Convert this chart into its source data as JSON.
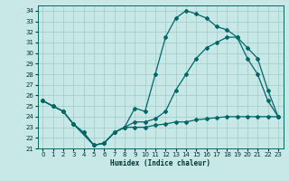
{
  "xlabel": "Humidex (Indice chaleur)",
  "ylabel": "",
  "bg_color": "#c8e8e8",
  "grid_color": "#a0c8c8",
  "line_color": "#006666",
  "xlim": [
    -0.5,
    23.5
  ],
  "ylim": [
    21,
    34.5
  ],
  "xticks": [
    0,
    1,
    2,
    3,
    4,
    5,
    6,
    7,
    8,
    9,
    10,
    11,
    12,
    13,
    14,
    15,
    16,
    17,
    18,
    19,
    20,
    21,
    22,
    23
  ],
  "yticks": [
    21,
    22,
    23,
    24,
    25,
    26,
    27,
    28,
    29,
    30,
    31,
    32,
    33,
    34
  ],
  "line1_x": [
    0,
    1,
    2,
    3,
    4,
    5,
    6,
    7,
    8,
    9,
    10,
    11,
    12,
    13,
    14,
    15,
    16,
    17,
    18,
    19,
    20,
    21,
    22,
    23
  ],
  "line1_y": [
    25.5,
    25.0,
    24.5,
    23.3,
    22.5,
    21.3,
    21.5,
    22.5,
    23.0,
    24.8,
    24.5,
    28.0,
    31.5,
    33.3,
    34.0,
    33.7,
    33.3,
    32.5,
    32.2,
    31.5,
    29.5,
    28.0,
    25.5,
    24.0
  ],
  "line2_x": [
    0,
    1,
    2,
    3,
    5,
    6,
    7,
    8,
    9,
    10,
    11,
    12,
    13,
    14,
    15,
    16,
    17,
    18,
    19,
    20,
    21,
    22,
    23
  ],
  "line2_y": [
    25.5,
    25.0,
    24.5,
    23.3,
    21.3,
    21.5,
    22.5,
    23.0,
    23.5,
    23.5,
    23.8,
    24.5,
    26.5,
    28.0,
    29.5,
    30.5,
    31.0,
    31.5,
    31.5,
    30.5,
    29.5,
    26.5,
    24.0
  ],
  "line3_x": [
    0,
    1,
    2,
    3,
    4,
    5,
    6,
    7,
    8,
    9,
    10,
    11,
    12,
    13,
    14,
    15,
    16,
    17,
    18,
    19,
    20,
    21,
    22,
    23
  ],
  "line3_y": [
    25.5,
    25.0,
    24.5,
    23.3,
    22.5,
    21.3,
    21.5,
    22.5,
    23.0,
    23.0,
    23.0,
    23.2,
    23.3,
    23.5,
    23.5,
    23.7,
    23.8,
    23.9,
    24.0,
    24.0,
    24.0,
    24.0,
    24.0,
    24.0
  ]
}
